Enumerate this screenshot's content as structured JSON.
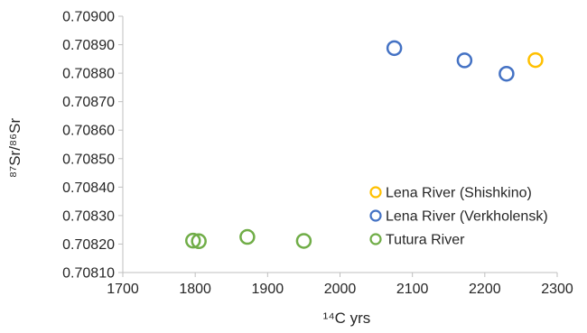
{
  "chart_data": {
    "type": "scatter",
    "title": "",
    "xlabel": "¹⁴C yrs",
    "ylabel": "⁸⁷Sr/⁸⁶Sr",
    "xlim": [
      1700,
      2300
    ],
    "ylim": [
      0.7081,
      0.709
    ],
    "x_ticks": [
      "1700",
      "1800",
      "1900",
      "2000",
      "2100",
      "2200",
      "2300"
    ],
    "y_ticks": [
      "0.70810",
      "0.70820",
      "0.70830",
      "0.70840",
      "0.70850",
      "0.70860",
      "0.70870",
      "0.70880",
      "0.70890",
      "0.70900"
    ],
    "grid": false,
    "legend_position": "bottom-right",
    "marker": "open-circle",
    "series": [
      {
        "name": "Lena River (Shishkino)",
        "color": "#FFC000",
        "points": [
          [
            2270,
            0.708846
          ]
        ]
      },
      {
        "name": "Lena River (Verkholensk)",
        "color": "#4472C4",
        "points": [
          [
            2075,
            0.708888
          ],
          [
            2172,
            0.708845
          ],
          [
            2230,
            0.708798
          ]
        ]
      },
      {
        "name": "Tutura River",
        "color": "#70AD47",
        "points": [
          [
            1797,
            0.708212
          ],
          [
            1805,
            0.70821
          ],
          [
            1872,
            0.708225
          ],
          [
            1950,
            0.708211
          ]
        ]
      }
    ]
  }
}
